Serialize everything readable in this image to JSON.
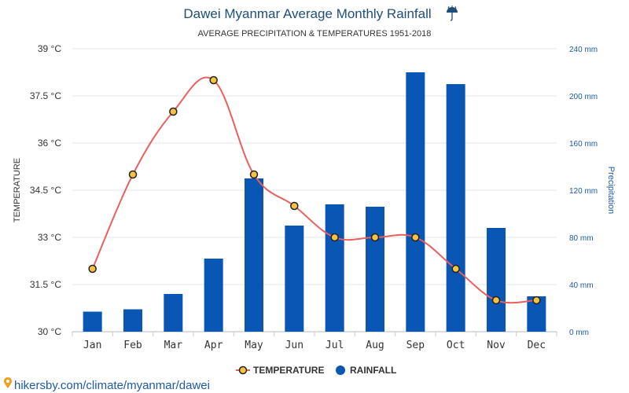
{
  "chart_data": {
    "type": "bar",
    "title": "Dawei Myanmar Average Monthly Rainfall",
    "title_icon": "umbrella-icon",
    "subtitle": "AVERAGE PRECIPITATION & TEMPERATURES 1951-2018",
    "categories": [
      "Jan",
      "Feb",
      "Mar",
      "Apr",
      "May",
      "Jun",
      "Jul",
      "Aug",
      "Sep",
      "Oct",
      "Nov",
      "Dec"
    ],
    "y_left": {
      "label": "TEMPERATURE",
      "ylim": [
        30,
        39
      ],
      "ticks": [
        30,
        31.5,
        33,
        34.5,
        36,
        37.5,
        39
      ],
      "tick_labels": [
        "30 °C",
        "31.5 °C",
        "33 °C",
        "34.5 °C",
        "36 °C",
        "37.5 °C",
        "39 °C"
      ]
    },
    "y_right": {
      "label": "Precipitation",
      "ylim": [
        0,
        240
      ],
      "ticks": [
        0,
        40,
        80,
        120,
        160,
        200,
        240
      ],
      "tick_labels": [
        "0 mm",
        "40 mm",
        "80 mm",
        "120 mm",
        "160 mm",
        "200 mm",
        "240 mm"
      ]
    },
    "series": [
      {
        "name": "TEMPERATURE",
        "type": "line",
        "axis": "left",
        "color": "#e86060",
        "marker_fill": "#f5c242",
        "marker_stroke": "#222222",
        "values": [
          32,
          35,
          37,
          38,
          35,
          34,
          33,
          33,
          33,
          32,
          31,
          31
        ]
      },
      {
        "name": "RAINFALL",
        "type": "bar",
        "axis": "right",
        "color": "#0a56b5",
        "values": [
          17,
          19,
          32,
          62,
          130,
          90,
          108,
          106,
          220,
          210,
          88,
          30
        ]
      }
    ],
    "grid": true,
    "legend": "bottom-center"
  },
  "footer": {
    "icon": "location-pin-icon",
    "text": "hikersby.com/climate/myanmar/dawei"
  }
}
